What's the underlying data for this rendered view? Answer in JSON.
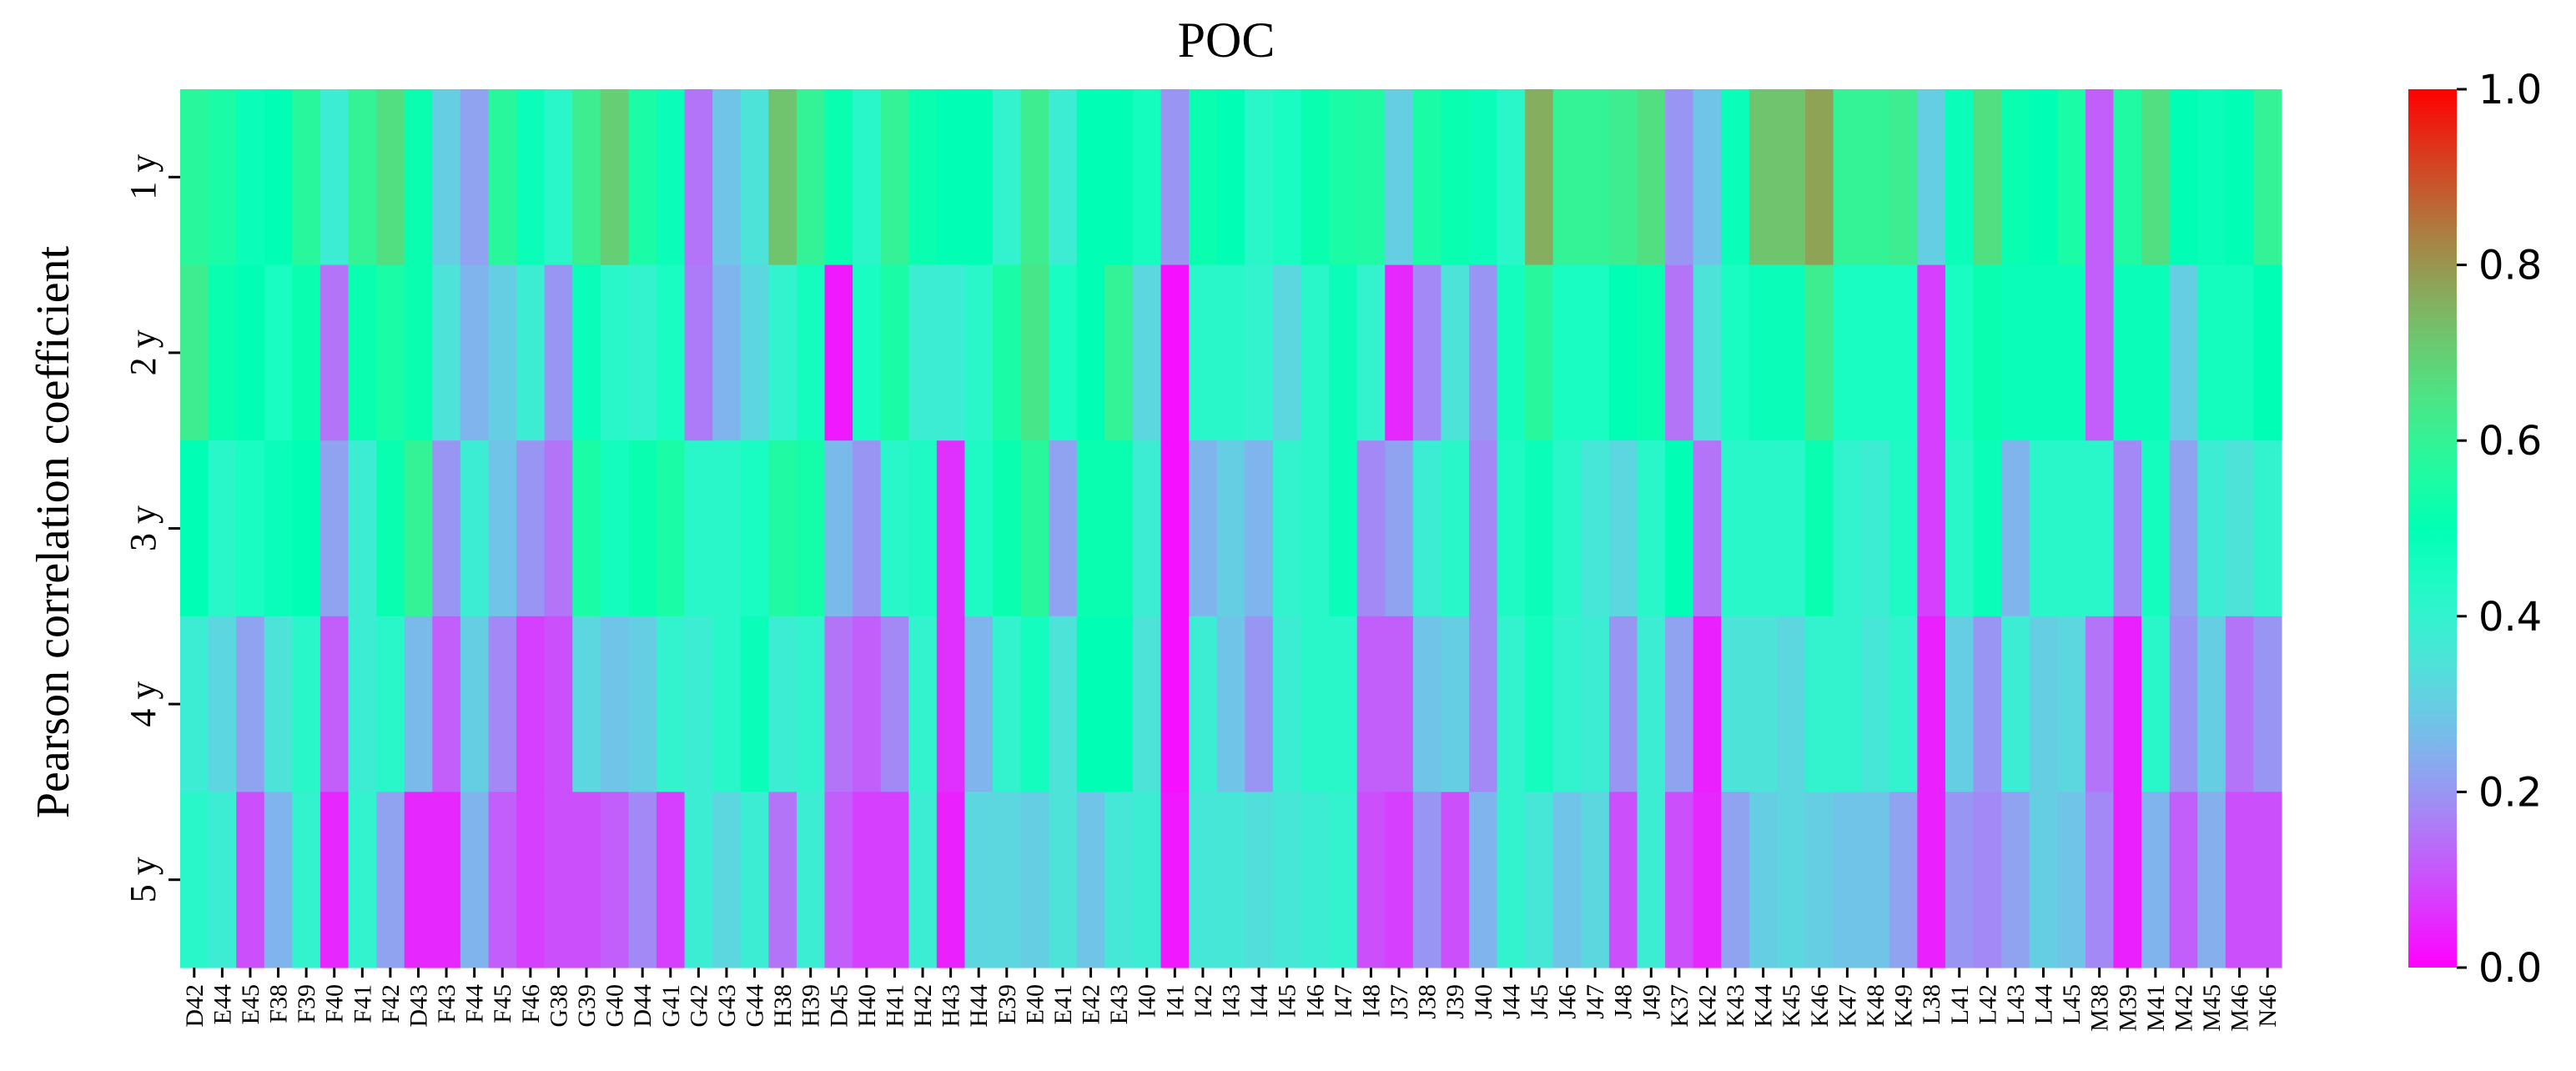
{
  "chart_data": {
    "type": "heatmap",
    "title": "POC",
    "ylabel": "Pearson correlation coefficient",
    "xlabel": "",
    "rows": [
      "1 y",
      "2 y",
      "3 y",
      "4 y",
      "5 y"
    ],
    "columns": [
      "D42",
      "E44",
      "E45",
      "F38",
      "F39",
      "F40",
      "F41",
      "F42",
      "D43",
      "F43",
      "F44",
      "F45",
      "F46",
      "G38",
      "G39",
      "G40",
      "D44",
      "G41",
      "G42",
      "G43",
      "G44",
      "H38",
      "H39",
      "D45",
      "H40",
      "H41",
      "H42",
      "H43",
      "H44",
      "E39",
      "E40",
      "E41",
      "E42",
      "E43",
      "I40",
      "I41",
      "I42",
      "I43",
      "I44",
      "I45",
      "I46",
      "I47",
      "I48",
      "J37",
      "J38",
      "J39",
      "J40",
      "J44",
      "J45",
      "J46",
      "J47",
      "J48",
      "J49",
      "K37",
      "K42",
      "K43",
      "K44",
      "K45",
      "K46",
      "K47",
      "K48",
      "K49",
      "L38",
      "L41",
      "L42",
      "L43",
      "L44",
      "L45",
      "M38",
      "M39",
      "M41",
      "M42",
      "M45",
      "M46",
      "N46"
    ],
    "values": [
      [
        0.58,
        0.55,
        0.48,
        0.5,
        0.58,
        0.38,
        0.6,
        0.66,
        0.52,
        0.3,
        0.22,
        0.58,
        0.48,
        0.42,
        0.62,
        0.7,
        0.55,
        0.48,
        0.15,
        0.28,
        0.35,
        0.72,
        0.6,
        0.52,
        0.42,
        0.6,
        0.52,
        0.5,
        0.5,
        0.4,
        0.62,
        0.38,
        0.5,
        0.5,
        0.46,
        0.2,
        0.52,
        0.5,
        0.42,
        0.45,
        0.52,
        0.55,
        0.56,
        0.3,
        0.55,
        0.52,
        0.48,
        0.42,
        0.76,
        0.6,
        0.6,
        0.62,
        0.66,
        0.2,
        0.28,
        0.48,
        0.72,
        0.72,
        0.78,
        0.6,
        0.6,
        0.62,
        0.3,
        0.48,
        0.66,
        0.52,
        0.5,
        0.55,
        0.12,
        0.56,
        0.66,
        0.5,
        0.48,
        0.5,
        0.6
      ],
      [
        0.62,
        0.52,
        0.5,
        0.45,
        0.52,
        0.15,
        0.52,
        0.55,
        0.52,
        0.35,
        0.25,
        0.3,
        0.38,
        0.2,
        0.48,
        0.42,
        0.4,
        0.45,
        0.16,
        0.25,
        0.32,
        0.4,
        0.46,
        0.03,
        0.45,
        0.55,
        0.38,
        0.38,
        0.42,
        0.55,
        0.64,
        0.45,
        0.5,
        0.6,
        0.32,
        0.02,
        0.42,
        0.42,
        0.4,
        0.32,
        0.42,
        0.48,
        0.4,
        0.05,
        0.18,
        0.35,
        0.2,
        0.46,
        0.58,
        0.45,
        0.45,
        0.5,
        0.52,
        0.15,
        0.35,
        0.45,
        0.48,
        0.48,
        0.62,
        0.45,
        0.45,
        0.45,
        0.08,
        0.45,
        0.52,
        0.48,
        0.48,
        0.48,
        0.12,
        0.48,
        0.48,
        0.3,
        0.46,
        0.46,
        0.5
      ],
      [
        0.5,
        0.42,
        0.45,
        0.48,
        0.5,
        0.22,
        0.38,
        0.52,
        0.6,
        0.2,
        0.38,
        0.28,
        0.2,
        0.15,
        0.55,
        0.46,
        0.52,
        0.55,
        0.42,
        0.42,
        0.45,
        0.56,
        0.54,
        0.26,
        0.2,
        0.42,
        0.44,
        0.06,
        0.44,
        0.52,
        0.58,
        0.22,
        0.52,
        0.52,
        0.38,
        0.02,
        0.25,
        0.3,
        0.25,
        0.4,
        0.42,
        0.48,
        0.18,
        0.22,
        0.38,
        0.42,
        0.18,
        0.44,
        0.48,
        0.42,
        0.36,
        0.32,
        0.42,
        0.5,
        0.15,
        0.42,
        0.42,
        0.42,
        0.52,
        0.4,
        0.38,
        0.44,
        0.08,
        0.42,
        0.48,
        0.25,
        0.42,
        0.42,
        0.42,
        0.18,
        0.46,
        0.22,
        0.38,
        0.35,
        0.4
      ],
      [
        0.38,
        0.32,
        0.22,
        0.35,
        0.42,
        0.12,
        0.38,
        0.42,
        0.26,
        0.12,
        0.3,
        0.18,
        0.08,
        0.1,
        0.32,
        0.28,
        0.3,
        0.4,
        0.38,
        0.42,
        0.48,
        0.38,
        0.4,
        0.15,
        0.12,
        0.18,
        0.4,
        0.06,
        0.25,
        0.4,
        0.46,
        0.35,
        0.5,
        0.5,
        0.35,
        0.02,
        0.38,
        0.28,
        0.2,
        0.38,
        0.42,
        0.42,
        0.12,
        0.12,
        0.28,
        0.3,
        0.18,
        0.4,
        0.46,
        0.4,
        0.38,
        0.2,
        0.38,
        0.22,
        0.04,
        0.35,
        0.35,
        0.32,
        0.4,
        0.4,
        0.36,
        0.4,
        0.04,
        0.3,
        0.2,
        0.38,
        0.3,
        0.32,
        0.15,
        0.04,
        0.42,
        0.2,
        0.3,
        0.15,
        0.2
      ],
      [
        0.42,
        0.38,
        0.1,
        0.25,
        0.4,
        0.05,
        0.4,
        0.22,
        0.05,
        0.05,
        0.25,
        0.12,
        0.08,
        0.1,
        0.1,
        0.12,
        0.18,
        0.08,
        0.38,
        0.32,
        0.38,
        0.15,
        0.38,
        0.12,
        0.08,
        0.08,
        0.38,
        0.04,
        0.32,
        0.32,
        0.3,
        0.35,
        0.28,
        0.36,
        0.38,
        0.03,
        0.36,
        0.36,
        0.34,
        0.36,
        0.38,
        0.4,
        0.1,
        0.08,
        0.2,
        0.1,
        0.25,
        0.4,
        0.36,
        0.28,
        0.32,
        0.1,
        0.38,
        0.1,
        0.05,
        0.22,
        0.3,
        0.32,
        0.3,
        0.28,
        0.28,
        0.22,
        0.04,
        0.2,
        0.18,
        0.22,
        0.3,
        0.28,
        0.18,
        0.04,
        0.25,
        0.12,
        0.24,
        0.1,
        0.1
      ]
    ],
    "vmin": 0.0,
    "vmax": 1.0,
    "colormap": "rainbow",
    "colorbar_ticks": [
      "0.0",
      "0.2",
      "0.4",
      "0.6",
      "0.8",
      "1.0"
    ],
    "colorbar_tick_values": [
      0.0,
      0.2,
      0.4,
      0.6,
      0.8,
      1.0
    ]
  }
}
